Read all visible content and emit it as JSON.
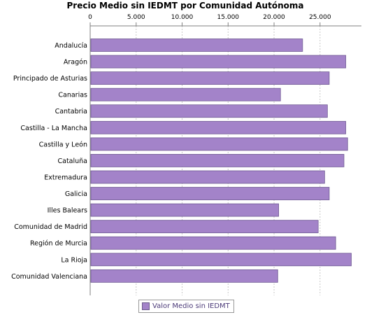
{
  "chart_data": {
    "type": "bar",
    "orientation": "horizontal",
    "title": "Precio Medio sin IEDMT por Comunidad Autónoma",
    "categories": [
      "Andalucía",
      "Aragón",
      "Principado de Asturias",
      "Canarias",
      "Cantabria",
      "Castilla - La Mancha",
      "Castilla y León",
      "Cataluña",
      "Extremadura",
      "Galicia",
      "Illes Balears",
      "Comunidad de Madrid",
      "Región de Murcia",
      "La Rioja",
      "Comunidad Valenciana"
    ],
    "series": [
      {
        "name": "Valor Medio sin IEDMT",
        "values": [
          23100,
          27800,
          26000,
          20700,
          25800,
          27800,
          28000,
          27600,
          25500,
          26000,
          20500,
          24800,
          26700,
          28400,
          20400
        ],
        "color": "#a383c9"
      }
    ],
    "x_ticks": [
      0,
      5000,
      10000,
      15000,
      20000,
      25000
    ],
    "x_tick_labels": [
      "0",
      "5.000",
      "10.000",
      "15.000",
      "20.000",
      "25.000"
    ],
    "xlim": [
      0,
      29500
    ],
    "x_axis_position": "top",
    "grid": true,
    "legend_position": "bottom"
  }
}
